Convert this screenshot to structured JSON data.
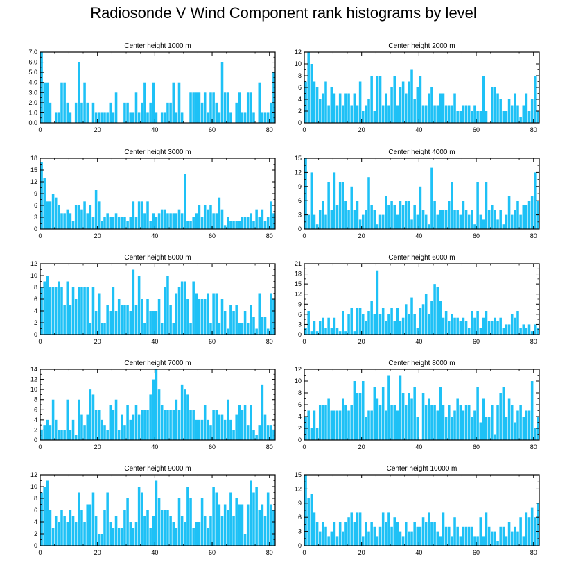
{
  "title": "Radiosonde V Wind Component rank histograms by level",
  "colors": {
    "bar": "#1ec1f6",
    "axis": "#000000",
    "background": "#ffffff"
  },
  "chart_data": [
    {
      "type": "bar",
      "title": "Center height 1000 m",
      "xlim": [
        0,
        82
      ],
      "xticks": [
        0,
        20,
        40,
        60,
        80
      ],
      "ylim": [
        0,
        7
      ],
      "yticks": [
        0,
        1,
        2,
        3,
        4,
        5,
        6,
        7
      ],
      "ytick_labels": [
        "0.0",
        "1.0",
        "2.0",
        "3.0",
        "4.0",
        "5.0",
        "6.0",
        "7.0"
      ],
      "values": [
        7,
        4,
        4,
        2,
        0,
        1,
        1,
        4,
        4,
        2,
        1,
        0,
        2,
        6,
        2,
        4,
        2,
        0,
        2,
        1,
        1,
        1,
        1,
        1,
        2,
        1,
        3,
        0,
        0,
        2,
        2,
        1,
        1,
        3,
        1,
        2,
        4,
        1,
        2,
        4,
        1,
        0,
        1,
        1,
        2,
        2,
        4,
        1,
        4,
        1,
        0,
        0,
        3,
        3,
        3,
        3,
        2,
        3,
        1,
        3,
        3,
        2,
        1,
        6,
        3,
        3,
        1,
        0,
        2,
        3,
        1,
        1,
        3,
        3,
        1,
        0,
        4,
        1,
        1,
        1,
        2,
        5
      ]
    },
    {
      "type": "bar",
      "title": "Center height 2000 m",
      "xlim": [
        0,
        82
      ],
      "xticks": [
        0,
        20,
        40,
        60,
        80
      ],
      "ylim": [
        0,
        12
      ],
      "yticks": [
        0,
        2,
        4,
        6,
        8,
        10,
        12
      ],
      "ytick_labels": [
        "0",
        "2",
        "4",
        "6",
        "8",
        "10",
        "12"
      ],
      "values": [
        7,
        12,
        10,
        7,
        6,
        4,
        5,
        7,
        3,
        6,
        5,
        3,
        5,
        3,
        5,
        5,
        3,
        5,
        3,
        7,
        2,
        3,
        4,
        8,
        2,
        8,
        8,
        3,
        5,
        3,
        6,
        8,
        3,
        6,
        7,
        5,
        7,
        9,
        4,
        6,
        8,
        3,
        3,
        5,
        6,
        3,
        3,
        5,
        5,
        3,
        3,
        3,
        5,
        2,
        2,
        3,
        3,
        3,
        2,
        3,
        2,
        2,
        8,
        2,
        0,
        6,
        6,
        5,
        4,
        2,
        2,
        4,
        3,
        5,
        3,
        1,
        3,
        5,
        2,
        4,
        8,
        2
      ]
    },
    {
      "type": "bar",
      "title": "Center height 3000 m",
      "xlim": [
        0,
        82
      ],
      "xticks": [
        0,
        20,
        40,
        60,
        80
      ],
      "ylim": [
        0,
        18
      ],
      "yticks": [
        0,
        3,
        6,
        9,
        12,
        15,
        18
      ],
      "ytick_labels": [
        "0",
        "3",
        "6",
        "9",
        "12",
        "15",
        "18"
      ],
      "values": [
        17,
        13,
        7,
        7,
        9,
        8,
        6,
        4,
        4,
        5,
        4,
        2,
        6,
        6,
        5,
        7,
        4,
        6,
        3,
        10,
        7,
        2,
        3,
        4,
        3,
        3,
        4,
        3,
        3,
        3,
        2,
        3,
        7,
        3,
        7,
        7,
        4,
        7,
        2,
        4,
        3,
        4,
        5,
        5,
        4,
        4,
        4,
        4,
        5,
        4,
        14,
        2,
        2,
        3,
        4,
        6,
        3,
        6,
        5,
        6,
        4,
        4,
        8,
        5,
        1,
        3,
        2,
        2,
        2,
        2,
        3,
        3,
        3,
        4,
        2,
        5,
        3,
        5,
        2,
        3,
        7,
        4
      ]
    },
    {
      "type": "bar",
      "title": "Center height 4000 m",
      "xlim": [
        0,
        82
      ],
      "xticks": [
        0,
        20,
        40,
        60,
        80
      ],
      "ylim": [
        0,
        15
      ],
      "yticks": [
        0,
        3,
        6,
        9,
        12,
        15
      ],
      "ytick_labels": [
        "0",
        "3",
        "6",
        "9",
        "12",
        "15"
      ],
      "values": [
        15,
        3,
        12,
        3,
        1,
        4,
        6,
        3,
        10,
        4,
        12,
        5,
        10,
        10,
        6,
        4,
        9,
        4,
        6,
        2,
        3,
        4,
        11,
        5,
        4,
        1,
        3,
        3,
        7,
        5,
        6,
        5,
        3,
        6,
        5,
        6,
        6,
        2,
        5,
        3,
        9,
        4,
        3,
        1,
        13,
        6,
        3,
        4,
        4,
        4,
        6,
        10,
        4,
        4,
        3,
        6,
        4,
        3,
        4,
        1,
        10,
        3,
        2,
        10,
        4,
        5,
        4,
        2,
        4,
        1,
        3,
        7,
        3,
        4,
        6,
        3,
        5,
        5,
        6,
        7,
        12,
        6
      ]
    },
    {
      "type": "bar",
      "title": "Center height 5000 m",
      "xlim": [
        0,
        82
      ],
      "xticks": [
        0,
        20,
        40,
        60,
        80
      ],
      "ylim": [
        0,
        12
      ],
      "yticks": [
        0,
        2,
        4,
        6,
        8,
        10,
        12
      ],
      "ytick_labels": [
        "0",
        "2",
        "4",
        "6",
        "8",
        "10",
        "12"
      ],
      "values": [
        8,
        9,
        10,
        8,
        8,
        8,
        9,
        8,
        5,
        9,
        5,
        8,
        6,
        8,
        8,
        8,
        8,
        2,
        8,
        4,
        7,
        2,
        2,
        5,
        4,
        8,
        4,
        6,
        5,
        5,
        5,
        4,
        11,
        5,
        10,
        6,
        2,
        6,
        4,
        4,
        4,
        6,
        2,
        8,
        10,
        5,
        2,
        7,
        8,
        9,
        9,
        6,
        2,
        9,
        7,
        6,
        6,
        6,
        7,
        2,
        7,
        7,
        2,
        6,
        4,
        1,
        5,
        4,
        5,
        2,
        2,
        4,
        2,
        5,
        3,
        1,
        7,
        3,
        3,
        1,
        7,
        6
      ]
    },
    {
      "type": "bar",
      "title": "Center height 6000 m",
      "xlim": [
        0,
        82
      ],
      "xticks": [
        0,
        20,
        40,
        60,
        80
      ],
      "ylim": [
        0,
        21
      ],
      "yticks": [
        0,
        3,
        6,
        9,
        12,
        15,
        18,
        21
      ],
      "ytick_labels": [
        "0",
        "3",
        "6",
        "9",
        "12",
        "15",
        "18",
        "21"
      ],
      "values": [
        2,
        7,
        1,
        4,
        1,
        4,
        5,
        2,
        5,
        2,
        5,
        2,
        1,
        7,
        1,
        6,
        8,
        1,
        8,
        8,
        6,
        4,
        7,
        10,
        6,
        19,
        6,
        8,
        4,
        6,
        8,
        4,
        8,
        4,
        5,
        9,
        6,
        11,
        6,
        2,
        8,
        9,
        12,
        6,
        10,
        15,
        14,
        10,
        5,
        7,
        4,
        6,
        5,
        5,
        4,
        5,
        4,
        2,
        7,
        5,
        7,
        2,
        5,
        7,
        4,
        4,
        5,
        4,
        5,
        2,
        3,
        3,
        6,
        5,
        7,
        2,
        3,
        2,
        3,
        1,
        3,
        2
      ]
    },
    {
      "type": "bar",
      "title": "Center height 7000 m",
      "xlim": [
        0,
        82
      ],
      "xticks": [
        0,
        20,
        40,
        60,
        80
      ],
      "ylim": [
        0,
        14
      ],
      "yticks": [
        0,
        2,
        4,
        6,
        8,
        10,
        12,
        14
      ],
      "ytick_labels": [
        "0",
        "2",
        "4",
        "6",
        "8",
        "10",
        "12",
        "14"
      ],
      "values": [
        2,
        3,
        4,
        3,
        8,
        4,
        2,
        2,
        2,
        8,
        2,
        4,
        1,
        8,
        5,
        3,
        5,
        10,
        9,
        6,
        6,
        4,
        3,
        2,
        7,
        6,
        8,
        2,
        5,
        3,
        7,
        4,
        5,
        7,
        5,
        6,
        6,
        6,
        9,
        12,
        14,
        10,
        7,
        6,
        6,
        6,
        6,
        8,
        6,
        11,
        10,
        9,
        6,
        6,
        4,
        4,
        4,
        7,
        4,
        3,
        6,
        6,
        5,
        5,
        4,
        8,
        4,
        2,
        5,
        7,
        6,
        7,
        3,
        7,
        2,
        1,
        3,
        11,
        5,
        3,
        3,
        2
      ]
    },
    {
      "type": "bar",
      "title": "Center height 8000 m",
      "xlim": [
        0,
        82
      ],
      "xticks": [
        0,
        20,
        40,
        60,
        80
      ],
      "ylim": [
        0,
        12
      ],
      "yticks": [
        0,
        2,
        4,
        6,
        8,
        10,
        12
      ],
      "ytick_labels": [
        "0",
        "2",
        "4",
        "6",
        "8",
        "10",
        "12"
      ],
      "values": [
        4,
        5,
        2,
        5,
        2,
        6,
        6,
        6,
        7,
        5,
        5,
        5,
        5,
        7,
        6,
        5,
        6,
        10,
        8,
        8,
        10,
        4,
        5,
        5,
        9,
        7,
        6,
        9,
        5,
        11,
        6,
        6,
        5,
        11,
        8,
        6,
        8,
        7,
        9,
        4,
        0,
        8,
        6,
        7,
        6,
        6,
        5,
        9,
        6,
        4,
        6,
        4,
        5,
        7,
        6,
        5,
        6,
        6,
        4,
        5,
        9,
        3,
        7,
        4,
        4,
        6,
        1,
        6,
        8,
        9,
        4,
        7,
        6,
        3,
        5,
        6,
        4,
        5,
        5,
        10,
        2,
        4
      ]
    },
    {
      "type": "bar",
      "title": "Center height 9000 m",
      "xlim": [
        0,
        82
      ],
      "xticks": [
        0,
        20,
        40,
        60,
        80
      ],
      "ylim": [
        0,
        12
      ],
      "yticks": [
        0,
        2,
        4,
        6,
        8,
        10,
        12
      ],
      "ytick_labels": [
        "0",
        "2",
        "4",
        "6",
        "8",
        "10",
        "12"
      ],
      "values": [
        9,
        10,
        11,
        6,
        3,
        5,
        4,
        6,
        5,
        4,
        6,
        5,
        4,
        9,
        6,
        4,
        7,
        7,
        9,
        5,
        2,
        2,
        6,
        9,
        4,
        3,
        5,
        3,
        3,
        6,
        8,
        4,
        3,
        4,
        10,
        9,
        5,
        6,
        3,
        5,
        11,
        8,
        6,
        6,
        6,
        5,
        4,
        3,
        8,
        5,
        4,
        10,
        8,
        3,
        4,
        4,
        8,
        5,
        3,
        5,
        10,
        9,
        7,
        5,
        7,
        6,
        9,
        5,
        8,
        7,
        7,
        2,
        7,
        11,
        9,
        10,
        6,
        7,
        5,
        9,
        7,
        6
      ]
    },
    {
      "type": "bar",
      "title": "Center height 10000 m",
      "xlim": [
        0,
        82
      ],
      "xticks": [
        0,
        20,
        40,
        60,
        80
      ],
      "ylim": [
        0,
        15
      ],
      "yticks": [
        0,
        3,
        6,
        9,
        12,
        15
      ],
      "ytick_labels": [
        "0",
        "3",
        "6",
        "9",
        "12",
        "15"
      ],
      "values": [
        15,
        10,
        11,
        7,
        5,
        3,
        5,
        4,
        2,
        3,
        5,
        2,
        5,
        3,
        5,
        6,
        7,
        5,
        7,
        7,
        2,
        5,
        3,
        5,
        4,
        2,
        4,
        7,
        5,
        7,
        4,
        6,
        5,
        3,
        2,
        5,
        3,
        3,
        5,
        4,
        4,
        6,
        5,
        7,
        5,
        5,
        3,
        2,
        7,
        4,
        4,
        2,
        6,
        4,
        2,
        4,
        4,
        4,
        4,
        2,
        2,
        6,
        2,
        7,
        4,
        3,
        3,
        1,
        4,
        4,
        2,
        5,
        3,
        4,
        3,
        6,
        2,
        7,
        6,
        8,
        6,
        9
      ]
    }
  ]
}
